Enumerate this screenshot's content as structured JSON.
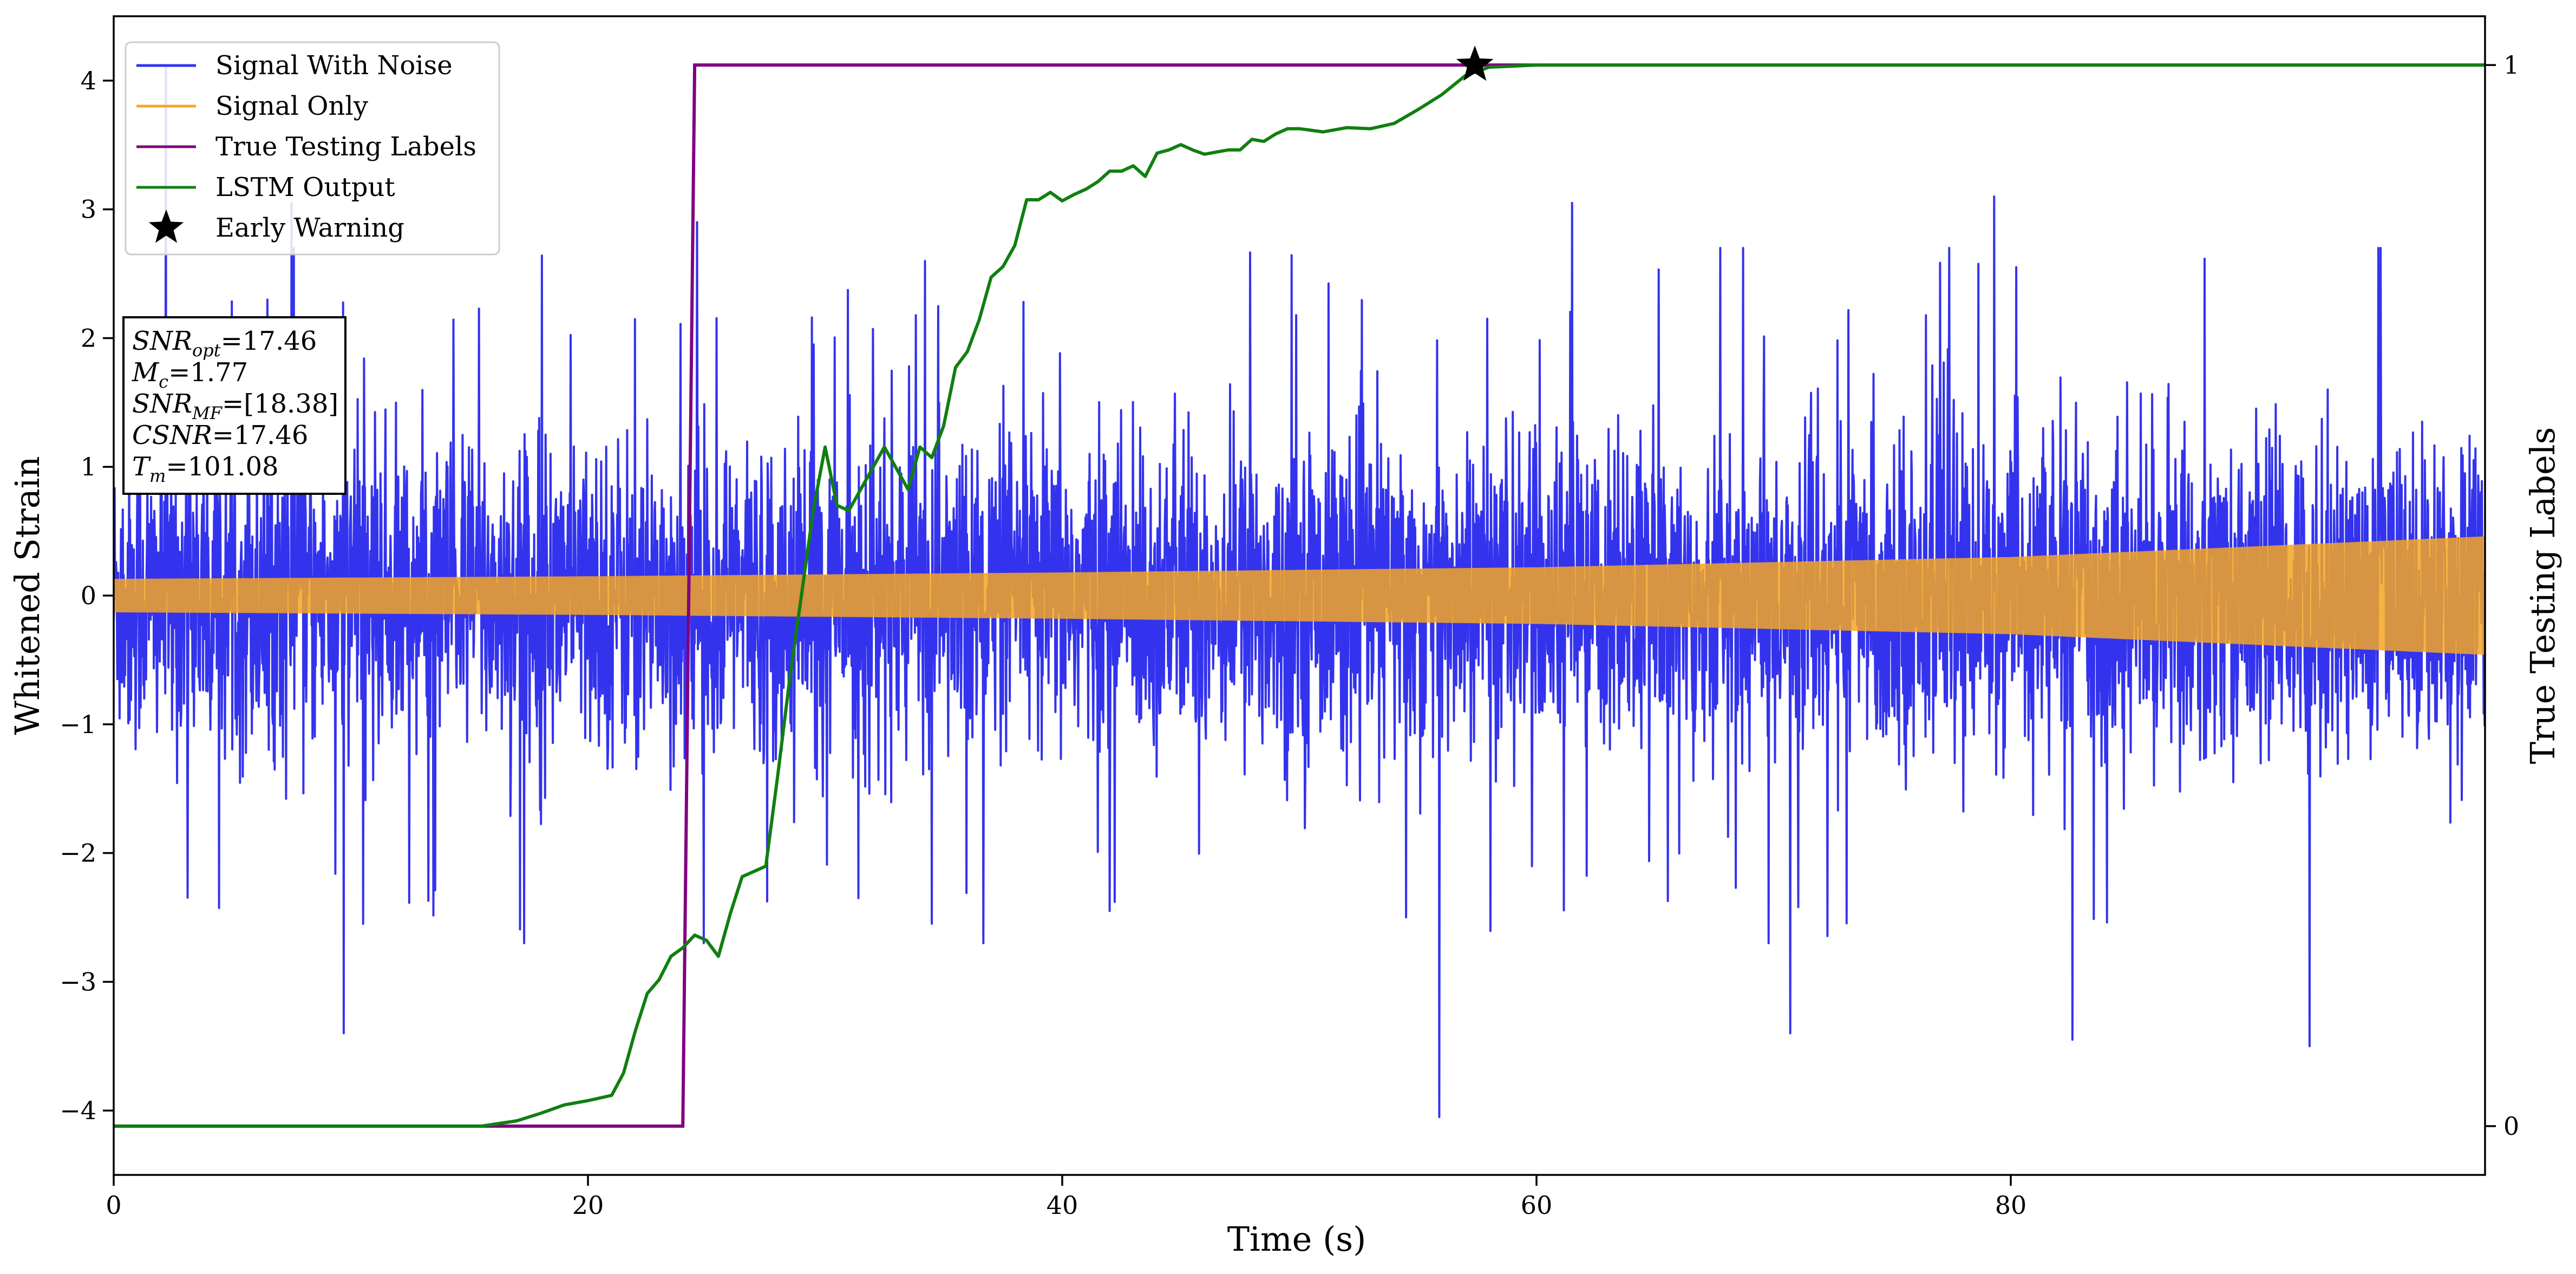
{
  "chart_data": {
    "type": "line",
    "xlabel": "Time (s)",
    "ylabel": "Whitened Strain",
    "ylabel_right": "True Testing Labels",
    "xlim": [
      0,
      100
    ],
    "ylim": [
      -4.5,
      4.5
    ],
    "ylim_right": [
      -0.046,
      1.046
    ],
    "x_ticks": [
      0,
      20,
      40,
      60,
      80
    ],
    "y_ticks": [
      -4,
      -3,
      -2,
      -1,
      0,
      1,
      2,
      3,
      4
    ],
    "y_ticks_right": [
      0,
      1
    ],
    "grid": false,
    "legend_position": "upper-left",
    "series": [
      {
        "name": "Signal With Noise",
        "color": "#3333ee",
        "kind": "noise",
        "noise_std": 0.6,
        "notable_peaks": [
          {
            "x": 2.2,
            "y": 4.1
          },
          {
            "x": 7.5,
            "y": 3.05
          },
          {
            "x": 9.7,
            "y": -3.4
          },
          {
            "x": 24.6,
            "y": 2.9
          },
          {
            "x": 55.9,
            "y": -4.05
          },
          {
            "x": 61.5,
            "y": 3.05
          },
          {
            "x": 70.7,
            "y": -3.4
          },
          {
            "x": 79.3,
            "y": 3.1
          },
          {
            "x": 82.6,
            "y": -3.45
          },
          {
            "x": 92.6,
            "y": -3.5
          }
        ]
      },
      {
        "name": "Signal Only",
        "color": "#f5a623",
        "kind": "chirp_envelope",
        "envelope": {
          "x": [
            0,
            20,
            40,
            60,
            80,
            100
          ],
          "amp": [
            0.13,
            0.15,
            0.18,
            0.22,
            0.3,
            0.46
          ]
        }
      },
      {
        "name": "True Testing Labels",
        "color": "#800080",
        "axis": "right",
        "x": [
          0,
          24.0,
          24.5,
          100
        ],
        "y": [
          0,
          0,
          1,
          1
        ]
      },
      {
        "name": "LSTM Output",
        "color": "#107f10",
        "axis": "right",
        "x": [
          0,
          15.5,
          17,
          18,
          19,
          20,
          21,
          21.5,
          22,
          22.5,
          23,
          23.5,
          24,
          24.5,
          25,
          25.5,
          26,
          26.5,
          27,
          27.5,
          28,
          28.5,
          29,
          29.5,
          30,
          30.5,
          31,
          31.5,
          32,
          32.5,
          33,
          33.5,
          34,
          34.5,
          35,
          35.5,
          36,
          36.5,
          37,
          37.5,
          38,
          38.5,
          39,
          39.5,
          40,
          40.5,
          41,
          41.5,
          42,
          42.5,
          43,
          43.5,
          44,
          44.5,
          45,
          45.5,
          46,
          46.5,
          47,
          47.5,
          48,
          48.5,
          49,
          49.5,
          50,
          51,
          52,
          53,
          54,
          55,
          56,
          57,
          58,
          60,
          65,
          70,
          80,
          100
        ],
        "y": [
          0,
          0,
          0.005,
          0.012,
          0.02,
          0.024,
          0.029,
          0.05,
          0.09,
          0.125,
          0.138,
          0.16,
          0.168,
          0.18,
          0.175,
          0.16,
          0.2,
          0.235,
          0.24,
          0.245,
          0.33,
          0.42,
          0.5,
          0.58,
          0.64,
          0.585,
          0.58,
          0.6,
          0.62,
          0.64,
          0.62,
          0.6,
          0.64,
          0.63,
          0.66,
          0.715,
          0.73,
          0.76,
          0.8,
          0.81,
          0.83,
          0.873,
          0.873,
          0.88,
          0.872,
          0.878,
          0.883,
          0.89,
          0.9,
          0.9,
          0.905,
          0.895,
          0.917,
          0.92,
          0.925,
          0.92,
          0.916,
          0.918,
          0.92,
          0.92,
          0.93,
          0.928,
          0.935,
          0.94,
          0.94,
          0.937,
          0.941,
          0.94,
          0.945,
          0.958,
          0.972,
          0.99,
          0.998,
          1.0,
          1.0,
          1.0,
          1.0,
          1.0
        ]
      },
      {
        "name": "Early Warning",
        "color": "#000000",
        "kind": "marker",
        "marker": "star",
        "axis": "right",
        "x": 57.4,
        "y": 1.0
      }
    ]
  },
  "annotation": {
    "line1": {
      "sym": "SNR",
      "sub": "opt",
      "val": "=17.46"
    },
    "line2": {
      "sym": "M",
      "sub": "c",
      "val": "=1.77"
    },
    "line3": {
      "sym": "SNR",
      "sub": "MF",
      "val": "=[18.38]"
    },
    "line4": {
      "sym": "CSNR",
      "sub": "",
      "val": "=17.46"
    },
    "line5": {
      "sym": "T",
      "sub": "m",
      "val": "=101.08"
    }
  }
}
